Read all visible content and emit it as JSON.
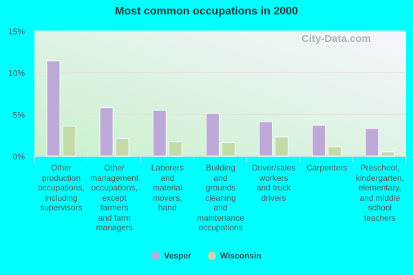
{
  "chart_data": {
    "type": "bar",
    "title": "Most common occupations in 2000",
    "xlabel": "",
    "ylabel": "",
    "ylim": [
      0,
      15
    ],
    "yticks": [
      "0%",
      "5%",
      "10%",
      "15%"
    ],
    "categories": [
      "Other production occupations, including supervisors",
      "Other management occupations, except farmers and farm managers",
      "Laborers and material movers, hand",
      "Building and grounds cleaning and maintenance occupations",
      "Driver/sales workers and truck drivers",
      "Carpenters",
      "Preschool, kindergarten, elementary, and middle school teachers"
    ],
    "category_lines": [
      [
        "Other",
        "production",
        "occupations,",
        "including",
        "supervisors"
      ],
      [
        "Other",
        "management",
        "occupations,",
        "except",
        "farmers",
        "and farm",
        "managers"
      ],
      [
        "Laborers",
        "and",
        "material",
        "movers,",
        "hand"
      ],
      [
        "Building",
        "and",
        "grounds",
        "cleaning",
        "and",
        "maintenance",
        "occupations"
      ],
      [
        "Driver/sales",
        "workers",
        "and truck",
        "drivers"
      ],
      [
        "Carpenters"
      ],
      [
        "Preschool,",
        "kindergarten,",
        "elementary,",
        "and middle",
        "school",
        "teachers"
      ]
    ],
    "series": [
      {
        "name": "Vesper",
        "color": "#bea8d8",
        "values": [
          11.4,
          5.8,
          5.5,
          5.1,
          4.1,
          3.7,
          3.3
        ]
      },
      {
        "name": "Wisconsin",
        "color": "#c4d9a8",
        "values": [
          3.6,
          2.1,
          1.7,
          1.6,
          2.3,
          1.1,
          0.5
        ]
      }
    ],
    "legend": "bottom",
    "grid": true
  },
  "watermark": "City-Data.com"
}
